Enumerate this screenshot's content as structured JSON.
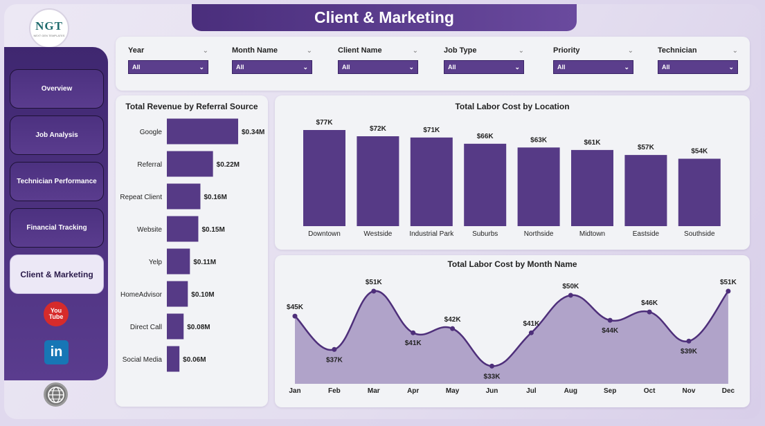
{
  "app": {
    "title": "Client & Marketing",
    "logo_text": "NGT",
    "logo_subtext": "NEXT GEN TEMPLATES"
  },
  "sidebar": {
    "items": [
      {
        "label": "Overview",
        "active": false
      },
      {
        "label": "Job Analysis",
        "active": false
      },
      {
        "label": "Technician Performance",
        "active": false
      },
      {
        "label": "Financial Tracking",
        "active": false
      },
      {
        "label": "Client & Marketing",
        "active": true
      }
    ],
    "social": [
      {
        "icon": "youtube-icon",
        "label_top": "You",
        "label_bottom": "Tube"
      },
      {
        "icon": "linkedin-icon",
        "label": "in"
      },
      {
        "icon": "website-icon"
      }
    ]
  },
  "filters": [
    {
      "label": "Year",
      "value": "All"
    },
    {
      "label": "Month Name",
      "value": "All"
    },
    {
      "label": "Client Name",
      "value": "All"
    },
    {
      "label": "Job Type",
      "value": "All"
    },
    {
      "label": "Priority",
      "value": "All"
    },
    {
      "label": "Technician",
      "value": "All"
    }
  ],
  "colors": {
    "accent": "#5b3e8c",
    "bar": "#563a86",
    "line": "#4e2f7a",
    "area": "#b0a3c9"
  },
  "chart_data": [
    {
      "type": "bar",
      "orientation": "horizontal",
      "title": "Total Revenue by Referral Source",
      "categories": [
        "Google",
        "Referral",
        "Repeat Client",
        "Website",
        "Yelp",
        "HomeAdvisor",
        "Direct Call",
        "Social Media"
      ],
      "values": [
        0.34,
        0.22,
        0.16,
        0.15,
        0.11,
        0.1,
        0.08,
        0.06
      ],
      "data_labels": [
        "$0.34M",
        "$0.22M",
        "$0.16M",
        "$0.15M",
        "$0.11M",
        "$0.10M",
        "$0.08M",
        "$0.06M"
      ],
      "unit": "$M"
    },
    {
      "type": "bar",
      "title": "Total Labor Cost by Location",
      "categories": [
        "Downtown",
        "Westside",
        "Industrial Park",
        "Suburbs",
        "Northside",
        "Midtown",
        "Eastside",
        "Southside"
      ],
      "values": [
        77,
        72,
        71,
        66,
        63,
        61,
        57,
        54
      ],
      "data_labels": [
        "$77K",
        "$72K",
        "$71K",
        "$66K",
        "$63K",
        "$61K",
        "$57K",
        "$54K"
      ],
      "unit": "$K"
    },
    {
      "type": "area",
      "title": "Total Labor Cost by Month Name",
      "categories": [
        "Jan",
        "Feb",
        "Mar",
        "Apr",
        "May",
        "Jun",
        "Jul",
        "Aug",
        "Sep",
        "Oct",
        "Nov",
        "Dec"
      ],
      "values": [
        45,
        37,
        51,
        41,
        42,
        33,
        41,
        50,
        44,
        46,
        39,
        51
      ],
      "data_labels": [
        "$45K",
        "$37K",
        "$51K",
        "$41K",
        "$42K",
        "$33K",
        "$41K",
        "$50K",
        "$44K",
        "$46K",
        "$39K",
        "$51K"
      ],
      "unit": "$K"
    }
  ]
}
